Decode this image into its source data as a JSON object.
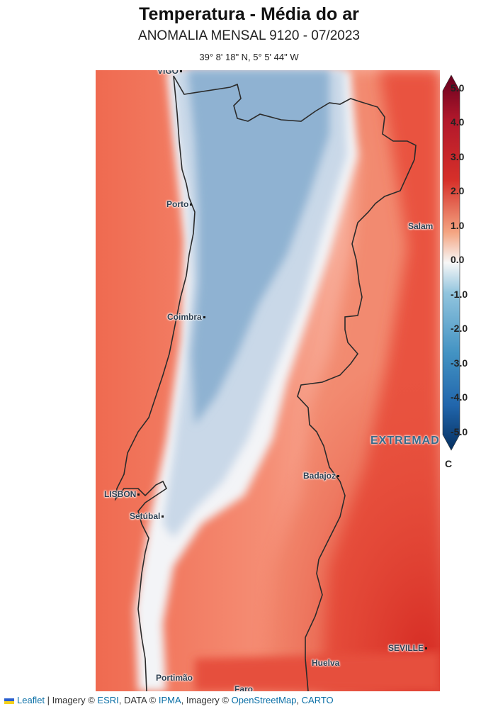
{
  "header": {
    "title": "Temperatura - Média do ar",
    "subtitle": "ANOMALIA MENSAL 9120 - 07/2023",
    "coordinates": "39° 8' 18\" N, 5° 5' 44\" W"
  },
  "map": {
    "cities": [
      {
        "name": "VIGO",
        "label": "VIGO"
      },
      {
        "name": "porto",
        "label": "Porto"
      },
      {
        "name": "salamanca",
        "label": "Salam"
      },
      {
        "name": "coimbra",
        "label": "Coimbra"
      },
      {
        "name": "lisbon",
        "label": "LISBON"
      },
      {
        "name": "setubal",
        "label": "Setúbal"
      },
      {
        "name": "badajoz",
        "label": "Badajoz"
      },
      {
        "name": "seville",
        "label": "SEVILLE"
      },
      {
        "name": "huelva",
        "label": "Huelva"
      },
      {
        "name": "portimao",
        "label": "Portimão"
      },
      {
        "name": "faro",
        "label": "Faro"
      }
    ],
    "region_label": "EXTREMAD"
  },
  "legend": {
    "ticks": [
      "5.0",
      "4.0",
      "3.0",
      "2.0",
      "1.0",
      "0.0",
      "-1.0",
      "-2.0",
      "-3.0",
      "-4.0",
      "-5.0"
    ],
    "unit": "C",
    "colors": {
      "max": "#67001f",
      "high": "#d6302a",
      "mid_warm": "#f4a582",
      "zero": "#f7f7f7",
      "mid_cool": "#92c5de",
      "low": "#2166ac",
      "min": "#053061"
    }
  },
  "attribution": {
    "leaflet": "Leaflet",
    "sep1": " | Imagery © ",
    "esri": "ESRI",
    "sep2": ", DATA © ",
    "ipma": "IPMA",
    "sep3": ", Imagery © ",
    "osm": "OpenStreetMap",
    "sep4": ", ",
    "carto": "CARTO"
  }
}
